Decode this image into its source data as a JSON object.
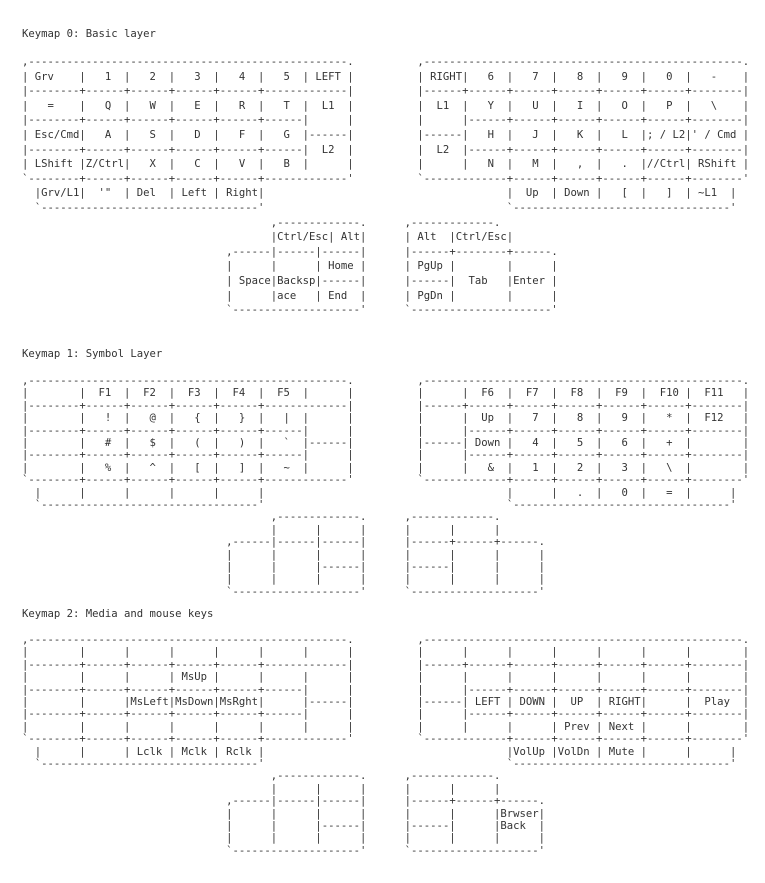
{
  "layers": [
    {
      "title": "Keymap 0: Basic layer",
      "main_left": [
        ",--------------------------------------------------.",
        "| Grv    |   1  |   2  |   3  |   4  |   5  | LEFT |",
        "|--------+------+------+------+------+-------------|",
        "|   =    |   Q  |   W  |   E  |   R  |   T  |  L1  |",
        "|--------+------+------+------+------+------|      |",
        "| Esc/Cmd|   A  |   S  |   D  |   F  |   G  |------|",
        "|--------+------+------+------+------+------|  L2  |",
        "| LShift |Z/Ctrl|   X  |   C  |   V  |   B  |      |",
        "`--------+------+------+------+------+-------------'",
        "  |Grv/L1|  '\"  | Del  | Left | Right|",
        "  `----------------------------------'"
      ],
      "main_right": [
        ",--------------------------------------------------.",
        "| RIGHT|   6  |   7  |   8  |   9  |   0  |   -    |",
        "|------+------+------+------+------+------+--------|",
        "|  L1  |   Y  |   U  |   I  |   O  |   P  |   \\    |",
        "|      |------+------+------+------+------+--------|",
        "|------|   H  |   J  |   K  |   L  |; / L2|' / Cmd |",
        "|  L2  |------+------+------+------+------+--------|",
        "|      |   N  |   M  |   ,  |   .  |//Ctrl| RShift |",
        "`-------------+------+------+------+------+--------'",
        "              |  Up  | Down |   [  |   ]  | ~L1  |",
        "              `----------------------------------'"
      ],
      "thumb_left": [
        "       ,-------------.",
        "       |Ctrl/Esc| Alt|",
        ",------|------|------|",
        "|      |      | Home |",
        "| Space|Backsp|------|",
        "|      |ace   | End  |",
        "`--------------------'"
      ],
      "thumb_right": [
        ",-------------.",
        "| Alt  |Ctrl/Esc|",
        "|------+--------+------.",
        "| PgUp |        |      |",
        "|------|  Tab   |Enter |",
        "| PgDn |        |      |",
        "`----------------------'"
      ]
    },
    {
      "title": "Keymap 1: Symbol Layer",
      "main_left": [
        ",--------------------------------------------------.",
        "|        |  F1  |  F2  |  F3  |  F4  |  F5  |      |",
        "|--------+------+------+------+------+-------------|",
        "|        |   !  |   @  |   {  |   }  |   |  |      |",
        "|--------+------+------+------+------+------|      |",
        "|        |   #  |   $  |   (  |   )  |   `  |------|",
        "|--------+------+------+------+------+------|      |",
        "|        |   %  |   ^  |   [  |   ]  |   ~  |      |",
        "`--------+------+------+------+------+-------------'",
        "  |      |      |      |      |      |",
        "  `----------------------------------'"
      ],
      "main_right": [
        ",--------------------------------------------------.",
        "|      |  F6  |  F7  |  F8  |  F9  |  F10 |  F11   |",
        "|------+------+------+------+------+------+--------|",
        "|      |  Up  |   7  |   8  |   9  |   *  |  F12   |",
        "|      |------+------+------+------+------+--------|",
        "|------| Down |   4  |   5  |   6  |   +  |        |",
        "|      |------+------+------+------+------+--------|",
        "|      |   &  |   1  |   2  |   3  |   \\  |        |",
        "`-------------+------+------+------+------+--------'",
        "              |      |   .  |   0  |   =  |      |",
        "              `----------------------------------'"
      ],
      "thumb_left": [
        "       ,-------------.",
        "       |      |      |",
        ",------|------|------|",
        "|      |      |      |",
        "|      |      |------|",
        "|      |      |      |",
        "`--------------------'"
      ],
      "thumb_right": [
        ",-------------.",
        "|      |      |",
        "|------+------+------.",
        "|      |      |      |",
        "|------|      |      |",
        "|      |      |      |",
        "`--------------------'"
      ]
    },
    {
      "title": "Keymap 2: Media and mouse keys",
      "main_left": [
        ",--------------------------------------------------.",
        "|        |      |      |      |      |      |      |",
        "|--------+------+------+------+------+-------------|",
        "|        |      |      | MsUp |      |      |      |",
        "|--------+------+------+------+------+------|      |",
        "|        |      |MsLeft|MsDown|MsRght|      |------|",
        "|--------+------+------+------+------+------|      |",
        "|        |      |      |      |      |      |      |",
        "`--------+------+------+------+------+-------------'",
        "  |      |      | Lclk | Mclk | Rclk |",
        "  `----------------------------------'"
      ],
      "main_right": [
        ",--------------------------------------------------.",
        "|      |      |      |      |      |      |        |",
        "|------+------+------+------+------+------+--------|",
        "|      |      |      |      |      |      |        |",
        "|      |------+------+------+------+------+--------|",
        "|------| LEFT | DOWN |  UP  | RIGHT|      |  Play  |",
        "|      |------+------+------+------+------+--------|",
        "|      |      |      | Prev | Next |      |        |",
        "`-------------+------+------+------+------+--------'",
        "              |VolUp |VolDn | Mute |      |      |",
        "              `----------------------------------'"
      ],
      "thumb_left": [
        "       ,-------------.",
        "       |      |      |",
        ",------|------|------|",
        "|      |      |      |",
        "|      |      |------|",
        "|      |      |      |",
        "`--------------------'"
      ],
      "thumb_right": [
        ",-------------.",
        "|      |      |",
        "|------+------+------.",
        "|      |      |Brwser|",
        "|------|      |Back  |",
        "|      |      |      |",
        "`--------------------'"
      ]
    }
  ]
}
